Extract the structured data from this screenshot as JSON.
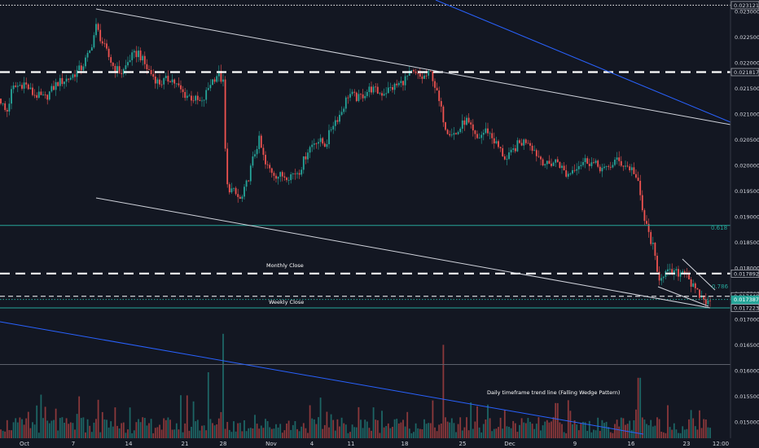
{
  "chart_data": {
    "type": "candlestick",
    "price_axis": {
      "ticks": [
        "0.023000",
        "0.022500",
        "0.022000",
        "0.021500",
        "0.021000",
        "0.020500",
        "0.020000",
        "0.019500",
        "0.019000",
        "0.018500",
        "0.018000",
        "0.017500",
        "0.017000",
        "0.016500",
        "0.016000",
        "0.015500",
        "0.015000"
      ],
      "range": [
        0.0146,
        0.0232
      ]
    },
    "time_axis": {
      "ticks": [
        "Oct",
        "7",
        "14",
        "21",
        "28",
        "Nov",
        "4",
        "11",
        "18",
        "25",
        "Dec",
        "9",
        "16",
        "23",
        "12:00"
      ]
    },
    "price_labels": [
      {
        "text": "0.023121",
        "kind": "level"
      },
      {
        "text": "0.021817",
        "kind": "level"
      },
      {
        "text": "0.017892",
        "kind": "level"
      },
      {
        "text": "0.017449",
        "kind": "level"
      },
      {
        "text": "0.017387",
        "kind": "last"
      },
      {
        "text": "53:15",
        "kind": "timer"
      },
      {
        "text": "0.017223",
        "kind": "level"
      }
    ],
    "horizontal_levels": [
      {
        "price": 0.023121,
        "style": "dotted",
        "color": "#ffffff"
      },
      {
        "price": 0.021817,
        "style": "dashed-thick",
        "color": "#ffffff"
      },
      {
        "price": 0.017892,
        "style": "dashed-thick",
        "color": "#ffffff"
      },
      {
        "price": 0.017449,
        "style": "dashed",
        "color": "#ffffff"
      },
      {
        "price": 0.017387,
        "style": "dotted",
        "color": "#26a69a"
      },
      {
        "price": 0.01883,
        "style": "solid",
        "color": "#26a69a"
      },
      {
        "price": 0.017223,
        "style": "solid",
        "color": "#26a69a"
      },
      {
        "price": 0.01612,
        "style": "solid",
        "color": "#5d606b"
      }
    ],
    "fib_labels": [
      "0.618",
      "0.786"
    ],
    "annotations": [
      "Monthly Close",
      "Weekly Close",
      "Daily timeframe trend line (Falling Wedge Pattern)"
    ],
    "colors": {
      "up": "#26a69a",
      "down": "#ef5350",
      "background": "#131722",
      "trendline": "#d1d4dc",
      "blue_trendline": "#2962ff"
    }
  }
}
